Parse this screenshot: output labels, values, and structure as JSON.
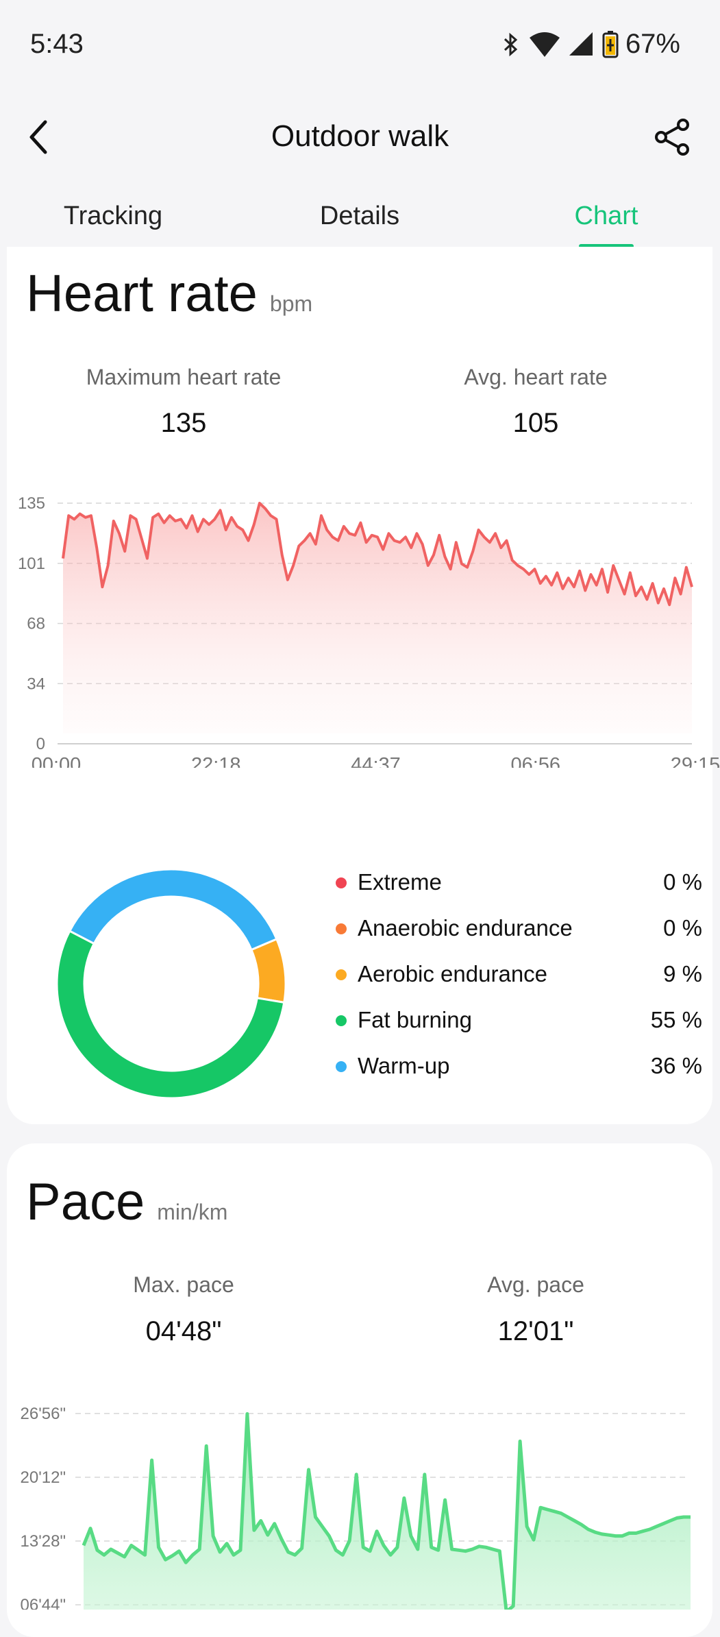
{
  "status_bar": {
    "time": "5:43",
    "battery": "67%"
  },
  "header": {
    "title": "Outdoor walk",
    "back_icon": "back-chevron-icon",
    "share_icon": "share-icon"
  },
  "tabs": [
    {
      "label": "Tracking",
      "active": false
    },
    {
      "label": "Details",
      "active": false
    },
    {
      "label": "Chart",
      "active": true
    }
  ],
  "heart_rate": {
    "title": "Heart rate",
    "unit": "bpm",
    "max_label": "Maximum heart rate",
    "max_value": "135",
    "avg_label": "Avg. heart rate",
    "avg_value": "105"
  },
  "chart_data": [
    {
      "type": "area",
      "y_ticks": [
        "135",
        "101",
        "68",
        "34",
        "0"
      ],
      "x_ticks": [
        "00:00",
        "22:18",
        "44:37",
        "06:56",
        "29:15"
      ],
      "ylim": [
        0,
        135
      ],
      "grid": true,
      "color": "#f06262",
      "values": [
        104,
        128,
        126,
        129,
        127,
        128,
        110,
        88,
        100,
        125,
        118,
        108,
        128,
        126,
        115,
        104,
        127,
        129,
        124,
        128,
        125,
        126,
        121,
        128,
        119,
        126,
        123,
        126,
        131,
        120,
        127,
        122,
        120,
        114,
        123,
        135,
        132,
        128,
        126,
        106,
        92,
        100,
        111,
        114,
        118,
        112,
        128,
        120,
        116,
        114,
        122,
        118,
        117,
        124,
        113,
        117,
        116,
        109,
        118,
        114,
        113,
        116,
        110,
        118,
        112,
        100,
        106,
        117,
        105,
        98,
        113,
        101,
        99,
        108,
        120,
        116,
        113,
        118,
        110,
        114,
        103,
        100,
        98,
        95,
        98,
        90,
        94,
        89,
        96,
        87,
        93,
        88,
        97,
        86,
        95,
        89,
        98,
        85,
        100,
        92,
        84,
        96,
        83,
        88,
        81,
        90,
        79,
        87,
        78,
        93,
        84,
        99,
        88
      ],
      "title": "",
      "xlabel": "",
      "ylabel": ""
    },
    {
      "type": "donut",
      "slices": [
        {
          "name": "Extreme",
          "pct": "0 %",
          "value": 0,
          "color": "#f04452"
        },
        {
          "name": "Anaerobic endurance",
          "pct": "0 %",
          "value": 0,
          "color": "#f87a36"
        },
        {
          "name": "Aerobic endurance",
          "pct": "9 %",
          "value": 9,
          "color": "#fcaa22"
        },
        {
          "name": "Fat burning",
          "pct": "55 %",
          "value": 55,
          "color": "#16c766"
        },
        {
          "name": "Warm-up",
          "pct": "36 %",
          "value": 36,
          "color": "#36b1f4"
        }
      ]
    },
    {
      "type": "area",
      "y_ticks": [
        "26'56\"",
        "20'12\"",
        "13'28\"",
        "06'44\""
      ],
      "ylim_labels": [
        "06'44\"",
        "26'56\""
      ],
      "grid": true,
      "color": "#58db84",
      "values": [
        13.0,
        14.8,
        12.5,
        12.0,
        12.6,
        12.2,
        11.8,
        13.0,
        12.5,
        12.0,
        22.0,
        12.8,
        11.5,
        11.9,
        12.4,
        11.2,
        12.0,
        12.6,
        23.5,
        14.0,
        12.3,
        13.2,
        12.0,
        12.5,
        26.9,
        14.6,
        15.6,
        14.1,
        15.3,
        13.7,
        12.3,
        12.0,
        12.7,
        21.0,
        16.0,
        15.0,
        14.0,
        12.5,
        12.0,
        13.5,
        20.5,
        12.8,
        12.4,
        14.5,
        13.0,
        12.0,
        12.8,
        18.0,
        14.0,
        12.6,
        20.5,
        12.8,
        12.5,
        17.8,
        12.6,
        12.5,
        12.4,
        12.6,
        12.9,
        12.8,
        12.6,
        12.4,
        6.0,
        6.6,
        24.0,
        15.0,
        13.6,
        17.0,
        16.8,
        16.6,
        16.4,
        16.0,
        15.6,
        15.2,
        14.7,
        14.4,
        14.2,
        14.1,
        14.0,
        14.0,
        14.3,
        14.3,
        14.5,
        14.7,
        15.0,
        15.3,
        15.6,
        15.9,
        16.0,
        16.0
      ],
      "title": "",
      "xlabel": "",
      "ylabel": ""
    }
  ],
  "pace": {
    "title": "Pace",
    "unit": "min/km",
    "max_label": "Max. pace",
    "max_value": "04'48\"",
    "avg_label": "Avg. pace",
    "avg_value": "12'01\""
  }
}
